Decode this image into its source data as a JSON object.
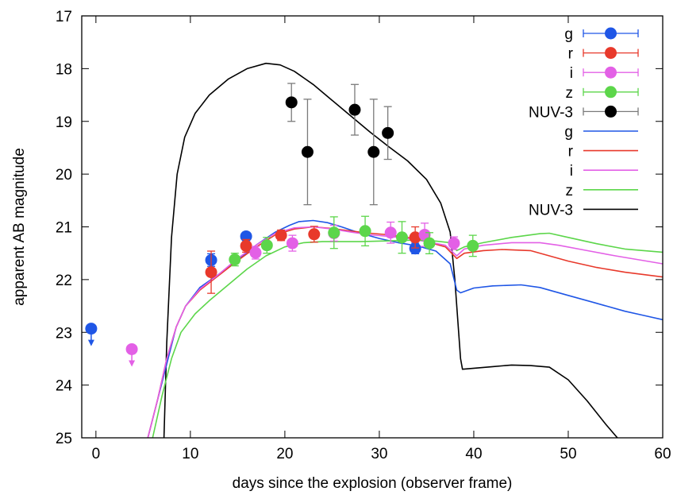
{
  "chart_data": {
    "type": "scatter",
    "xlabel": "days since the explosion (observer frame)",
    "ylabel": "apparent AB magnitude",
    "xlim": [
      -1.5,
      60
    ],
    "ylim": [
      25,
      17
    ],
    "y_inverted": true,
    "xticks": [
      0,
      10,
      20,
      30,
      40,
      50,
      60
    ],
    "yticks": [
      17,
      18,
      19,
      20,
      21,
      22,
      23,
      24,
      25
    ],
    "grid": false,
    "legend_position": "top-right",
    "colors": {
      "g": "#1f56e6",
      "r": "#e8392b",
      "i": "#e360e6",
      "z": "#5cd64a",
      "NUV-3": "#000000"
    },
    "legend": [
      {
        "label": "g",
        "kind": "points",
        "key": "g"
      },
      {
        "label": "r",
        "kind": "points",
        "key": "r"
      },
      {
        "label": "i",
        "kind": "points",
        "key": "i"
      },
      {
        "label": "z",
        "kind": "points",
        "key": "z"
      },
      {
        "label": "NUV-3",
        "kind": "points",
        "key": "NUV-3"
      },
      {
        "label": "g",
        "kind": "line",
        "key": "g"
      },
      {
        "label": "r",
        "kind": "line",
        "key": "r"
      },
      {
        "label": "i",
        "kind": "line",
        "key": "i"
      },
      {
        "label": "z",
        "kind": "line",
        "key": "z"
      },
      {
        "label": "NUV-3",
        "kind": "line",
        "key": "NUV-3"
      }
    ],
    "observations": [
      {
        "band": "g",
        "points": [
          {
            "x": -0.5,
            "y": 22.93,
            "upper_limit": true
          },
          {
            "x": 12.2,
            "y": 21.63,
            "err": 0.12
          },
          {
            "x": 15.9,
            "y": 21.18,
            "err": 0.08
          },
          {
            "x": 33.8,
            "y": 21.41,
            "err": 0.1
          }
        ]
      },
      {
        "band": "r",
        "points": [
          {
            "x": 12.2,
            "y": 21.86,
            "err": 0.4
          },
          {
            "x": 15.9,
            "y": 21.36,
            "err": 0.12
          },
          {
            "x": 19.6,
            "y": 21.16,
            "err": 0.1
          },
          {
            "x": 23.1,
            "y": 21.14,
            "err": 0.15
          },
          {
            "x": 33.8,
            "y": 21.2,
            "err": 0.2
          }
        ]
      },
      {
        "band": "i",
        "points": [
          {
            "x": 3.8,
            "y": 23.32,
            "upper_limit": true
          },
          {
            "x": 16.9,
            "y": 21.49,
            "err": 0.12
          },
          {
            "x": 20.8,
            "y": 21.31,
            "err": 0.15
          },
          {
            "x": 25.2,
            "y": 21.12,
            "err": 0.15
          },
          {
            "x": 31.2,
            "y": 21.11,
            "err": 0.2
          },
          {
            "x": 34.8,
            "y": 21.15,
            "err": 0.22
          },
          {
            "x": 37.9,
            "y": 21.31,
            "err": 0.12
          }
        ]
      },
      {
        "band": "z",
        "points": [
          {
            "x": 14.7,
            "y": 21.62,
            "err": 0.12
          },
          {
            "x": 18.1,
            "y": 21.35,
            "err": 0.15
          },
          {
            "x": 25.2,
            "y": 21.11,
            "err": 0.3
          },
          {
            "x": 28.5,
            "y": 21.08,
            "err": 0.28
          },
          {
            "x": 32.4,
            "y": 21.2,
            "err": 0.3
          },
          {
            "x": 35.3,
            "y": 21.31,
            "err": 0.2
          },
          {
            "x": 39.9,
            "y": 21.36,
            "err": 0.2
          }
        ]
      },
      {
        "band": "NUV-3",
        "points": [
          {
            "x": 20.7,
            "y": 18.64,
            "err": 0.36
          },
          {
            "x": 22.4,
            "y": 19.58,
            "err": 1.0
          },
          {
            "x": 27.4,
            "y": 18.78,
            "err": 0.48
          },
          {
            "x": 29.4,
            "y": 19.58,
            "err": 1.0
          },
          {
            "x": 30.9,
            "y": 19.22,
            "err": 0.5
          }
        ]
      }
    ],
    "models": [
      {
        "band": "NUV-3",
        "points": [
          [
            7.2,
            25
          ],
          [
            7.5,
            23.2
          ],
          [
            8.0,
            21.2
          ],
          [
            8.6,
            20.0
          ],
          [
            9.4,
            19.3
          ],
          [
            10.5,
            18.85
          ],
          [
            12,
            18.5
          ],
          [
            14,
            18.2
          ],
          [
            16,
            18.0
          ],
          [
            18,
            17.9
          ],
          [
            19.5,
            17.93
          ],
          [
            21,
            18.05
          ],
          [
            23,
            18.3
          ],
          [
            25,
            18.6
          ],
          [
            27,
            18.9
          ],
          [
            29,
            19.2
          ],
          [
            31,
            19.48
          ],
          [
            33,
            19.75
          ],
          [
            35,
            20.1
          ],
          [
            36.5,
            20.55
          ],
          [
            37.5,
            21.1
          ],
          [
            38.0,
            22.0
          ],
          [
            38.4,
            23.0
          ],
          [
            38.6,
            23.5
          ],
          [
            38.8,
            23.7
          ],
          [
            42,
            23.65
          ],
          [
            44,
            23.62
          ],
          [
            46,
            23.63
          ],
          [
            48,
            23.66
          ],
          [
            50,
            23.9
          ],
          [
            52,
            24.3
          ],
          [
            54,
            24.75
          ],
          [
            55.2,
            25
          ]
        ]
      },
      {
        "band": "g",
        "points": [
          [
            5.5,
            25
          ],
          [
            6.5,
            24.3
          ],
          [
            7.5,
            23.6
          ],
          [
            8.5,
            22.9
          ],
          [
            9.5,
            22.5
          ],
          [
            11,
            22.15
          ],
          [
            13,
            21.9
          ],
          [
            15,
            21.62
          ],
          [
            17,
            21.34
          ],
          [
            19,
            21.1
          ],
          [
            20.5,
            20.97
          ],
          [
            21.5,
            20.9
          ],
          [
            23,
            20.88
          ],
          [
            24.5,
            20.92
          ],
          [
            26,
            21.0
          ],
          [
            28,
            21.12
          ],
          [
            30,
            21.22
          ],
          [
            32,
            21.3
          ],
          [
            34,
            21.36
          ],
          [
            36,
            21.46
          ],
          [
            37.5,
            21.7
          ],
          [
            38.2,
            22.2
          ],
          [
            38.6,
            22.25
          ],
          [
            40,
            22.16
          ],
          [
            42,
            22.12
          ],
          [
            45,
            22.1
          ],
          [
            47,
            22.15
          ],
          [
            50,
            22.3
          ],
          [
            53,
            22.45
          ],
          [
            56,
            22.6
          ],
          [
            58,
            22.68
          ],
          [
            60,
            22.76
          ]
        ]
      },
      {
        "band": "r",
        "points": [
          [
            5.5,
            25
          ],
          [
            6.5,
            24.3
          ],
          [
            7.5,
            23.5
          ],
          [
            8.5,
            22.9
          ],
          [
            9.5,
            22.5
          ],
          [
            11,
            22.2
          ],
          [
            13,
            21.92
          ],
          [
            15,
            21.64
          ],
          [
            17,
            21.38
          ],
          [
            19,
            21.15
          ],
          [
            21,
            21.04
          ],
          [
            23,
            21.0
          ],
          [
            25,
            21.03
          ],
          [
            27,
            21.08
          ],
          [
            29,
            21.12
          ],
          [
            31,
            21.15
          ],
          [
            33,
            21.2
          ],
          [
            35,
            21.28
          ],
          [
            37,
            21.38
          ],
          [
            38.2,
            21.6
          ],
          [
            39,
            21.5
          ],
          [
            41,
            21.45
          ],
          [
            43,
            21.43
          ],
          [
            46,
            21.45
          ],
          [
            48,
            21.55
          ],
          [
            50,
            21.65
          ],
          [
            53,
            21.77
          ],
          [
            56,
            21.86
          ],
          [
            60,
            21.95
          ]
        ]
      },
      {
        "band": "i",
        "points": [
          [
            5.5,
            25
          ],
          [
            6.5,
            24.3
          ],
          [
            7.5,
            23.5
          ],
          [
            8.5,
            22.9
          ],
          [
            9.5,
            22.5
          ],
          [
            11,
            22.18
          ],
          [
            13,
            21.9
          ],
          [
            15,
            21.6
          ],
          [
            17,
            21.34
          ],
          [
            19,
            21.12
          ],
          [
            21,
            21.02
          ],
          [
            23,
            21.0
          ],
          [
            25,
            21.04
          ],
          [
            27,
            21.1
          ],
          [
            29,
            21.15
          ],
          [
            31,
            21.18
          ],
          [
            33,
            21.22
          ],
          [
            35,
            21.28
          ],
          [
            37,
            21.35
          ],
          [
            38.2,
            21.55
          ],
          [
            39,
            21.42
          ],
          [
            41,
            21.35
          ],
          [
            44,
            21.3
          ],
          [
            47,
            21.3
          ],
          [
            49,
            21.35
          ],
          [
            52,
            21.45
          ],
          [
            55,
            21.55
          ],
          [
            58,
            21.64
          ],
          [
            60,
            21.7
          ]
        ]
      },
      {
        "band": "z",
        "points": [
          [
            6,
            25
          ],
          [
            7,
            24.2
          ],
          [
            8,
            23.5
          ],
          [
            9,
            23.0
          ],
          [
            10.5,
            22.65
          ],
          [
            12,
            22.4
          ],
          [
            14,
            22.1
          ],
          [
            16,
            21.8
          ],
          [
            18,
            21.55
          ],
          [
            20,
            21.38
          ],
          [
            22,
            21.3
          ],
          [
            24,
            21.28
          ],
          [
            26,
            21.28
          ],
          [
            28,
            21.28
          ],
          [
            30,
            21.27
          ],
          [
            32,
            21.26
          ],
          [
            34,
            21.25
          ],
          [
            36,
            21.27
          ],
          [
            37.5,
            21.3
          ],
          [
            38.2,
            21.45
          ],
          [
            39,
            21.38
          ],
          [
            41,
            21.3
          ],
          [
            44,
            21.2
          ],
          [
            47,
            21.13
          ],
          [
            48,
            21.12
          ],
          [
            50,
            21.2
          ],
          [
            53,
            21.32
          ],
          [
            56,
            21.42
          ],
          [
            60,
            21.48
          ]
        ]
      }
    ]
  }
}
